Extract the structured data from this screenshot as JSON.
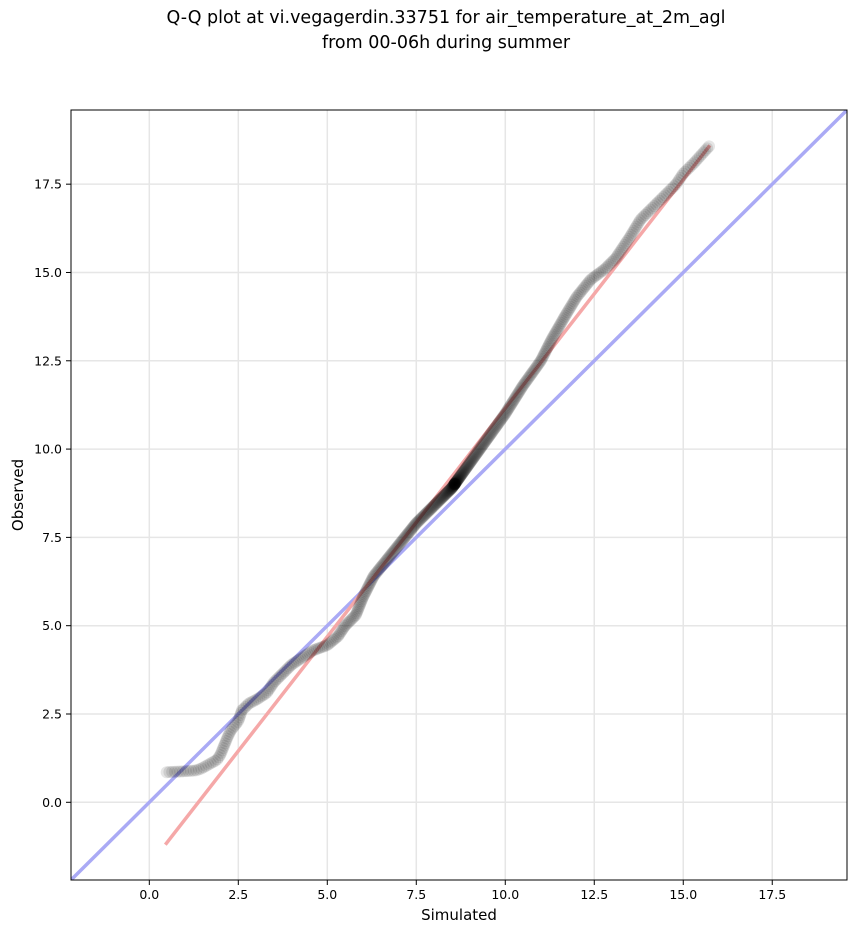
{
  "chart_data": {
    "type": "scatter",
    "title_line1": "Q-Q plot at vi.vegagerdin.33751 for air_temperature_at_2m_agl",
    "title_line2": "from 00-06h during summer",
    "xlabel": "Simulated",
    "ylabel": "Observed",
    "xlim": [
      -2.2,
      19.6
    ],
    "ylim": [
      -2.2,
      19.6
    ],
    "xticks": [
      0.0,
      2.5,
      5.0,
      7.5,
      10.0,
      12.5,
      15.0,
      17.5
    ],
    "yticks": [
      0.0,
      2.5,
      5.0,
      7.5,
      10.0,
      12.5,
      15.0,
      17.5
    ],
    "tick_labels": [
      "0.0",
      "2.5",
      "5.0",
      "7.5",
      "10.0",
      "12.5",
      "15.0",
      "17.5"
    ],
    "grid": true,
    "identity_line": {
      "color": "#aaaaf5",
      "from": [
        -2.2,
        -2.2
      ],
      "to": [
        19.6,
        19.6
      ]
    },
    "fit_line": {
      "color": "#f5a8a8",
      "from": [
        0.45,
        -1.2
      ],
      "to": [
        15.75,
        18.6
      ]
    },
    "point_color": "#000000",
    "quantile_curve": [
      [
        0.45,
        0.85
      ],
      [
        1.0,
        0.88
      ],
      [
        1.3,
        0.9
      ],
      [
        1.45,
        0.95
      ],
      [
        1.9,
        1.2
      ],
      [
        2.0,
        1.35
      ],
      [
        2.1,
        1.6
      ],
      [
        2.2,
        1.85
      ],
      [
        2.3,
        2.05
      ],
      [
        2.5,
        2.3
      ],
      [
        2.6,
        2.6
      ],
      [
        2.8,
        2.8
      ],
      [
        3.0,
        2.9
      ],
      [
        3.3,
        3.1
      ],
      [
        3.5,
        3.4
      ],
      [
        3.8,
        3.7
      ],
      [
        4.0,
        3.9
      ],
      [
        4.3,
        4.1
      ],
      [
        4.6,
        4.3
      ],
      [
        5.0,
        4.45
      ],
      [
        5.3,
        4.7
      ],
      [
        5.5,
        5.0
      ],
      [
        5.8,
        5.3
      ],
      [
        6.0,
        5.8
      ],
      [
        6.3,
        6.4
      ],
      [
        6.7,
        6.9
      ],
      [
        7.1,
        7.4
      ],
      [
        7.5,
        7.9
      ],
      [
        8.0,
        8.4
      ],
      [
        8.5,
        8.9
      ],
      [
        9.0,
        9.6
      ],
      [
        9.5,
        10.3
      ],
      [
        10.0,
        11.0
      ],
      [
        10.5,
        11.8
      ],
      [
        11.0,
        12.5
      ],
      [
        11.3,
        13.1
      ],
      [
        11.7,
        13.8
      ],
      [
        12.0,
        14.3
      ],
      [
        12.4,
        14.8
      ],
      [
        12.8,
        15.1
      ],
      [
        13.1,
        15.4
      ],
      [
        13.5,
        16.0
      ],
      [
        13.8,
        16.5
      ],
      [
        14.2,
        16.9
      ],
      [
        14.5,
        17.2
      ],
      [
        14.8,
        17.5
      ],
      [
        15.0,
        17.8
      ],
      [
        15.3,
        18.1
      ],
      [
        15.75,
        18.6
      ]
    ],
    "n_points": 500
  }
}
